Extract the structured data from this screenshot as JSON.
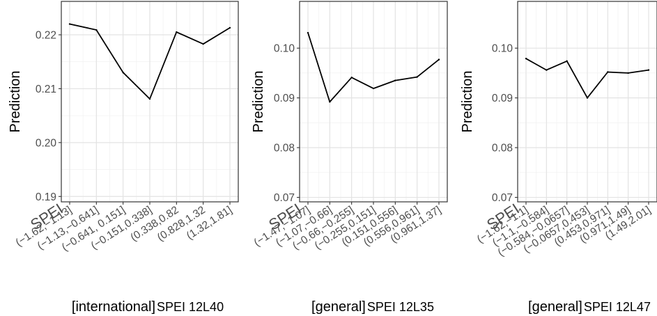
{
  "chart_data": [
    {
      "type": "line",
      "ylabel": "Prediction",
      "xlabel_prefix": "[international]",
      "xlabel_main": "SPEI 12L40",
      "x_tick_labels": [
        "SPEI",
        "(−1.62,−1.13]",
        "(−1.13,−0.641]",
        "(−0.641, 0.151]",
        "(−0.151,0.338]",
        "(0.338,0.82",
        "(0.828,1.32",
        "(1.32,1.81]"
      ],
      "x": [
        "(−1.62,−1.13]",
        "(−1.13,−0.641]",
        "(−0.641, 0.151]",
        "(−0.151,0.338]",
        "(0.338,0.82",
        "(0.828,1.32",
        "(1.32,1.81]"
      ],
      "y": [
        0.222,
        0.2209,
        0.213,
        0.2081,
        0.2205,
        0.2183,
        0.2213
      ],
      "ylim": [
        0.189,
        0.2262
      ],
      "yticks": [
        0.19,
        0.2,
        0.21,
        0.22
      ],
      "ytick_labels": [
        "0.19",
        "0.20",
        "0.21",
        "0.22"
      ],
      "grid": true
    },
    {
      "type": "line",
      "ylabel": "Prediction",
      "xlabel_prefix": "[general]",
      "xlabel_main": "SPEI 12L35",
      "x_tick_labels": [
        "SPEI",
        "(−1.47,−1.07]",
        "(−1.07,−0.66]",
        "(−0.66,−0.255]",
        "(−0.255,0.151]",
        "(0.151,0.556]",
        "(0.556,0.961]",
        "(0.961,1.37]"
      ],
      "x": [
        "(−1.47,−1.07]",
        "(−1.07,−0.66]",
        "(−0.66,−0.255]",
        "(−0.255,0.151]",
        "(0.151,0.556]",
        "(0.556,0.961]",
        "(0.961,1.37]"
      ],
      "y": [
        0.1031,
        0.0892,
        0.0941,
        0.0919,
        0.0935,
        0.0942,
        0.0977
      ],
      "ylim": [
        0.0691,
        0.1094
      ],
      "yticks": [
        0.07,
        0.08,
        0.09,
        0.1
      ],
      "ytick_labels": [
        "0.07",
        "0.08",
        "0.09",
        "0.10"
      ],
      "grid": true
    },
    {
      "type": "line",
      "ylabel": "Prediction",
      "xlabel_prefix": "[general]",
      "xlabel_main": "SPEI 12L47",
      "x_tick_labels": [
        "SPEI",
        "(−1.62,−1.1]",
        "(−1.1,−0.584]",
        "(−0.584,−0.0657]",
        "(−0.0657,0.453]",
        "(0.453,0.971]",
        "(0.971,1.49]",
        "(1.49,2.01]"
      ],
      "x": [
        "(−1.62,−1.1]",
        "(−1.1,−0.584]",
        "(−0.584,−0.0657]",
        "(−0.0657,0.453]",
        "(0.453,0.971]",
        "(0.971,1.49]",
        "(1.49,2.01]"
      ],
      "y": [
        0.0979,
        0.0956,
        0.0974,
        0.09,
        0.0952,
        0.095,
        0.0956
      ],
      "ylim": [
        0.0691,
        0.1094
      ],
      "yticks": [
        0.07,
        0.08,
        0.09,
        0.1
      ],
      "ytick_labels": [
        "0.07",
        "0.08",
        "0.09",
        "0.10"
      ],
      "grid": true
    }
  ]
}
